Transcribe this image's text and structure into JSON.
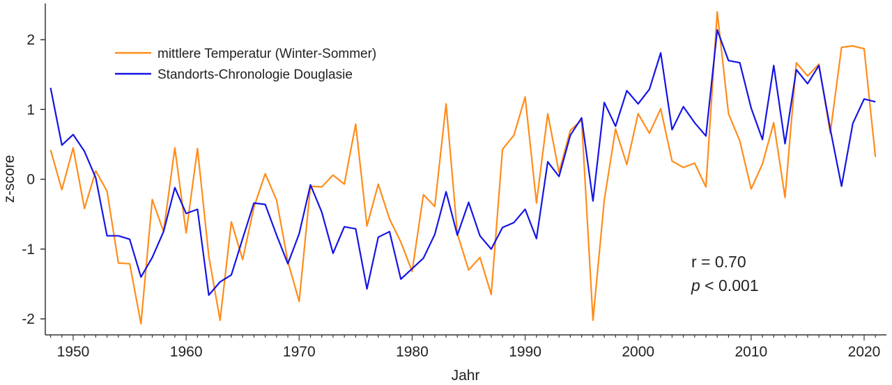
{
  "chart_data": {
    "type": "line",
    "title": "",
    "xlabel": "Jahr",
    "ylabel": "z-score",
    "xlim": [
      1947.8,
      2021.8
    ],
    "ylim": [
      -2.22,
      2.5
    ],
    "x_ticks": [
      1950,
      1960,
      1970,
      1980,
      1990,
      2000,
      2010,
      2020
    ],
    "y_ticks": [
      -2,
      -1,
      0,
      1,
      2
    ],
    "grid": false,
    "legend_position": "top-left",
    "x": [
      1948,
      1949,
      1950,
      1951,
      1952,
      1953,
      1954,
      1955,
      1956,
      1957,
      1958,
      1959,
      1960,
      1961,
      1962,
      1963,
      1964,
      1965,
      1966,
      1967,
      1968,
      1969,
      1970,
      1971,
      1972,
      1973,
      1974,
      1975,
      1976,
      1977,
      1978,
      1979,
      1980,
      1981,
      1982,
      1983,
      1984,
      1985,
      1986,
      1987,
      1988,
      1989,
      1990,
      1991,
      1992,
      1993,
      1994,
      1995,
      1996,
      1997,
      1998,
      1999,
      2000,
      2001,
      2002,
      2003,
      2004,
      2005,
      2006,
      2007,
      2008,
      2009,
      2010,
      2011,
      2012,
      2013,
      2014,
      2015,
      2016,
      2017,
      2018,
      2019,
      2020,
      2021
    ],
    "series": [
      {
        "name": "mittlere Temperatur (Winter-Sommer)",
        "color": "#ff8c1a",
        "values": [
          0.42,
          -0.15,
          0.45,
          -0.42,
          0.12,
          -0.17,
          -1.2,
          -1.21,
          -2.07,
          -0.29,
          -0.75,
          0.45,
          -0.77,
          0.44,
          -1.1,
          -2.02,
          -0.61,
          -1.15,
          -0.4,
          0.08,
          -0.3,
          -1.18,
          -1.75,
          -0.1,
          -0.11,
          0.06,
          -0.07,
          0.79,
          -0.67,
          -0.07,
          -0.57,
          -0.9,
          -1.32,
          -0.22,
          -0.39,
          1.08,
          -0.78,
          -1.3,
          -1.12,
          -1.65,
          0.43,
          0.63,
          1.18,
          -0.34,
          0.94,
          0.1,
          0.7,
          0.85,
          -2.02,
          -0.3,
          0.72,
          0.21,
          0.94,
          0.66,
          1.01,
          0.26,
          0.17,
          0.23,
          -0.11,
          2.4,
          0.94,
          0.55,
          -0.14,
          0.22,
          0.81,
          -0.26,
          1.67,
          1.48,
          1.65,
          0.66,
          1.89,
          1.91,
          1.87,
          0.32
        ]
      },
      {
        "name": "Standorts-Chronologie Douglasie",
        "color": "#1414e6",
        "values": [
          1.31,
          0.49,
          0.64,
          0.4,
          0.02,
          -0.81,
          -0.81,
          -0.86,
          -1.4,
          -1.12,
          -0.75,
          -0.12,
          -0.49,
          -0.43,
          -1.66,
          -1.47,
          -1.37,
          -0.85,
          -0.34,
          -0.36,
          -0.8,
          -1.21,
          -0.78,
          -0.08,
          -0.47,
          -1.06,
          -0.68,
          -0.71,
          -1.57,
          -0.83,
          -0.75,
          -1.43,
          -1.28,
          -1.13,
          -0.79,
          -0.18,
          -0.8,
          -0.33,
          -0.81,
          -1.0,
          -0.69,
          -0.62,
          -0.43,
          -0.85,
          0.25,
          0.04,
          0.63,
          0.88,
          -0.31,
          1.1,
          0.76,
          1.27,
          1.08,
          1.29,
          1.81,
          0.71,
          1.04,
          0.81,
          0.62,
          2.14,
          1.7,
          1.67,
          1.02,
          0.57,
          1.63,
          0.51,
          1.57,
          1.37,
          1.63,
          0.72,
          -0.1,
          0.8,
          1.15,
          1.11
        ]
      }
    ],
    "annotations": {
      "r": "r = 0.70",
      "p_symbol": "p",
      "p_rest": " < 0.001"
    }
  }
}
